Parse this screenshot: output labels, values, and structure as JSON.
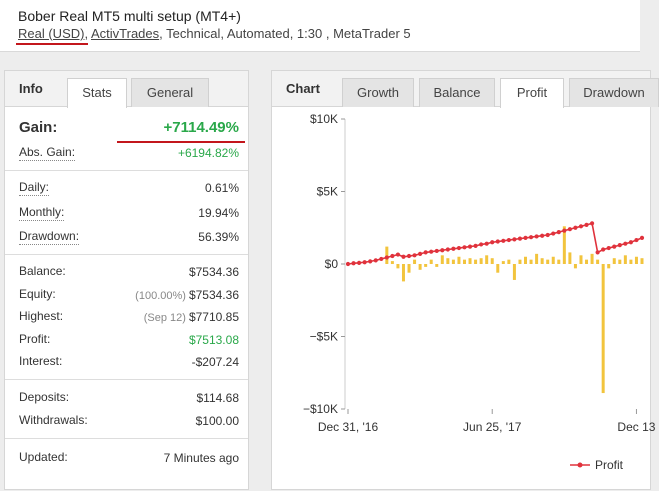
{
  "header": {
    "title": "Bober Real MT5 multi setup (MT4+)",
    "account_type": "Real (USD)",
    "broker": "ActivTrades",
    "rest": ", Technical, Automated, 1:30 , MetaTrader 5"
  },
  "info": {
    "title": "Info",
    "tabs": [
      "Stats",
      "General"
    ],
    "gain_label": "Gain:",
    "gain_value": "+7114.49%",
    "abs_gain_label": "Abs. Gain:",
    "abs_gain_value": "+6194.82%",
    "daily_label": "Daily:",
    "daily_value": "0.61%",
    "monthly_label": "Monthly:",
    "monthly_value": "19.94%",
    "drawdown_label": "Drawdown:",
    "drawdown_value": "56.39%",
    "balance_label": "Balance:",
    "balance_value": "$7534.36",
    "equity_label": "Equity:",
    "equity_note": "(100.00%)",
    "equity_value": "$7534.36",
    "highest_label": "Highest:",
    "highest_note": "(Sep 12)",
    "highest_value": "$7710.85",
    "profit_label": "Profit:",
    "profit_value": "$7513.08",
    "interest_label": "Interest:",
    "interest_value": "-$207.24",
    "deposits_label": "Deposits:",
    "deposits_value": "$114.68",
    "withdrawals_label": "Withdrawals:",
    "withdrawals_value": "$100.00",
    "updated_label": "Updated:",
    "updated_value": "7 Minutes ago"
  },
  "chart_panel": {
    "title": "Chart",
    "tabs": [
      "Growth",
      "Balance",
      "Profit",
      "Drawdown"
    ],
    "active_tab": "Profit"
  },
  "chart_data": {
    "type": "line",
    "yticks": [
      "$10K",
      "$5K",
      "$0",
      "−$5K",
      "−$10K"
    ],
    "ytick_values": [
      10000,
      5000,
      0,
      -5000,
      -10000
    ],
    "ylim": [
      -10000,
      10000
    ],
    "xticks": [
      "Dec 31, '16",
      "Jun 25, '17",
      "Dec 13"
    ],
    "xtick_index": [
      0,
      26,
      52
    ],
    "legend": "Profit",
    "line_color": "#e0323c",
    "bar_color": "#f2c43d",
    "series": [
      {
        "name": "Profit",
        "type": "line",
        "values": [
          0,
          50,
          80,
          120,
          180,
          250,
          350,
          450,
          550,
          650,
          500,
          550,
          600,
          700,
          800,
          850,
          900,
          950,
          1000,
          1050,
          1100,
          1150,
          1200,
          1250,
          1350,
          1400,
          1500,
          1550,
          1600,
          1650,
          1700,
          1750,
          1800,
          1850,
          1900,
          1950,
          2000,
          2100,
          2200,
          2300,
          2400,
          2500,
          2600,
          2700,
          2800,
          800,
          1000,
          1100,
          1200,
          1300,
          1400,
          1500,
          1650,
          1800
        ]
      },
      {
        "name": "Daily",
        "type": "bar",
        "values": [
          0,
          0,
          0,
          0,
          0,
          0,
          0,
          1200,
          200,
          -300,
          -1200,
          -600,
          300,
          -400,
          -200,
          300,
          -200,
          600,
          400,
          300,
          500,
          300,
          400,
          300,
          400,
          600,
          400,
          -600,
          200,
          300,
          -1100,
          300,
          500,
          300,
          700,
          400,
          300,
          500,
          300,
          2600,
          800,
          -300,
          600,
          300,
          700,
          300,
          -8900,
          -300,
          400,
          300,
          600,
          300,
          500,
          400
        ]
      }
    ]
  }
}
